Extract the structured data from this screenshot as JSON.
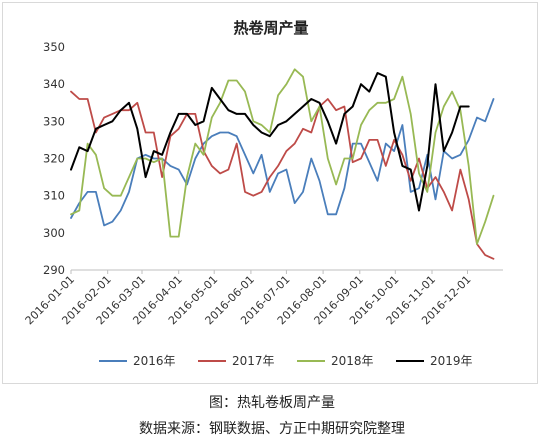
{
  "chart_data": {
    "type": "line",
    "title": "热卷周产量",
    "xlabel": "",
    "ylabel": "",
    "ylim": [
      290,
      350
    ],
    "yticks": [
      290,
      300,
      310,
      320,
      330,
      340,
      350
    ],
    "x_domain": [
      "2016-01-01",
      "2016-12-31"
    ],
    "xticks": [
      "2016-01-01",
      "2016-02-01",
      "2016-03-01",
      "2016-04-01",
      "2016-05-01",
      "2016-06-01",
      "2016-07-01",
      "2016-08-01",
      "2016-09-01",
      "2016-10-01",
      "2016-11-01",
      "2016-12-01"
    ],
    "grid": false,
    "legend_position": "bottom",
    "series": [
      {
        "name": "2016年",
        "color": "#4a7ebb",
        "points": [
          [
            "2016-01-01",
            304
          ],
          [
            "2016-01-08",
            308
          ],
          [
            "2016-01-15",
            311
          ],
          [
            "2016-01-22",
            311
          ],
          [
            "2016-01-29",
            302
          ],
          [
            "2016-02-05",
            303
          ],
          [
            "2016-02-12",
            306
          ],
          [
            "2016-02-19",
            311
          ],
          [
            "2016-02-26",
            320
          ],
          [
            "2016-03-04",
            321
          ],
          [
            "2016-03-11",
            320
          ],
          [
            "2016-03-18",
            320
          ],
          [
            "2016-03-25",
            318
          ],
          [
            "2016-04-01",
            317
          ],
          [
            "2016-04-08",
            313
          ],
          [
            "2016-04-15",
            320
          ],
          [
            "2016-04-22",
            324
          ],
          [
            "2016-04-29",
            326
          ],
          [
            "2016-05-06",
            327
          ],
          [
            "2016-05-13",
            327
          ],
          [
            "2016-05-20",
            326
          ],
          [
            "2016-05-27",
            321
          ],
          [
            "2016-06-03",
            316
          ],
          [
            "2016-06-10",
            321
          ],
          [
            "2016-06-17",
            311
          ],
          [
            "2016-06-24",
            316
          ],
          [
            "2016-07-01",
            317
          ],
          [
            "2016-07-08",
            308
          ],
          [
            "2016-07-15",
            311
          ],
          [
            "2016-07-22",
            320
          ],
          [
            "2016-07-29",
            314
          ],
          [
            "2016-08-05",
            305
          ],
          [
            "2016-08-12",
            305
          ],
          [
            "2016-08-19",
            312
          ],
          [
            "2016-08-26",
            324
          ],
          [
            "2016-09-02",
            324
          ],
          [
            "2016-09-09",
            319
          ],
          [
            "2016-09-16",
            314
          ],
          [
            "2016-09-23",
            324
          ],
          [
            "2016-09-30",
            322
          ],
          [
            "2016-10-07",
            329
          ],
          [
            "2016-10-14",
            311
          ],
          [
            "2016-10-21",
            312
          ],
          [
            "2016-10-28",
            321
          ],
          [
            "2016-11-04",
            309
          ],
          [
            "2016-11-11",
            322
          ],
          [
            "2016-11-18",
            320
          ],
          [
            "2016-11-25",
            321
          ],
          [
            "2016-12-02",
            325
          ],
          [
            "2016-12-09",
            331
          ],
          [
            "2016-12-16",
            330
          ],
          [
            "2016-12-23",
            336
          ]
        ]
      },
      {
        "name": "2017年",
        "color": "#be4b48",
        "points": [
          [
            "2016-01-01",
            338
          ],
          [
            "2016-01-08",
            336
          ],
          [
            "2016-01-15",
            336
          ],
          [
            "2016-01-22",
            327
          ],
          [
            "2016-01-29",
            331
          ],
          [
            "2016-02-05",
            332
          ],
          [
            "2016-02-12",
            333
          ],
          [
            "2016-02-19",
            333
          ],
          [
            "2016-02-26",
            335
          ],
          [
            "2016-03-04",
            327
          ],
          [
            "2016-03-11",
            327
          ],
          [
            "2016-03-18",
            315
          ],
          [
            "2016-03-25",
            326
          ],
          [
            "2016-04-01",
            328
          ],
          [
            "2016-04-08",
            332
          ],
          [
            "2016-04-15",
            332
          ],
          [
            "2016-04-22",
            322
          ],
          [
            "2016-04-29",
            318
          ],
          [
            "2016-05-06",
            316
          ],
          [
            "2016-05-13",
            317
          ],
          [
            "2016-05-20",
            324
          ],
          [
            "2016-05-27",
            311
          ],
          [
            "2016-06-03",
            310
          ],
          [
            "2016-06-10",
            311
          ],
          [
            "2016-06-17",
            315
          ],
          [
            "2016-06-24",
            318
          ],
          [
            "2016-07-01",
            322
          ],
          [
            "2016-07-08",
            324
          ],
          [
            "2016-07-15",
            328
          ],
          [
            "2016-07-22",
            327
          ],
          [
            "2016-07-29",
            334
          ],
          [
            "2016-08-05",
            336
          ],
          [
            "2016-08-12",
            333
          ],
          [
            "2016-08-19",
            334
          ],
          [
            "2016-08-26",
            319
          ],
          [
            "2016-09-02",
            320
          ],
          [
            "2016-09-09",
            325
          ],
          [
            "2016-09-16",
            325
          ],
          [
            "2016-09-23",
            318
          ],
          [
            "2016-09-30",
            325
          ],
          [
            "2016-10-07",
            321
          ],
          [
            "2016-10-14",
            314
          ],
          [
            "2016-10-21",
            320
          ],
          [
            "2016-10-28",
            312
          ],
          [
            "2016-11-04",
            315
          ],
          [
            "2016-11-11",
            311
          ],
          [
            "2016-11-18",
            306
          ],
          [
            "2016-11-25",
            317
          ],
          [
            "2016-12-02",
            309
          ],
          [
            "2016-12-09",
            297
          ],
          [
            "2016-12-16",
            294
          ],
          [
            "2016-12-23",
            293
          ]
        ]
      },
      {
        "name": "2018年",
        "color": "#98b954",
        "points": [
          [
            "2016-01-01",
            305
          ],
          [
            "2016-01-08",
            306
          ],
          [
            "2016-01-15",
            324
          ],
          [
            "2016-01-22",
            321
          ],
          [
            "2016-01-29",
            312
          ],
          [
            "2016-02-05",
            310
          ],
          [
            "2016-02-12",
            310
          ],
          [
            "2016-02-19",
            315
          ],
          [
            "2016-02-26",
            320
          ],
          [
            "2016-03-04",
            320
          ],
          [
            "2016-03-11",
            319
          ],
          [
            "2016-03-18",
            320
          ],
          [
            "2016-03-25",
            299
          ],
          [
            "2016-04-01",
            299
          ],
          [
            "2016-04-08",
            315
          ],
          [
            "2016-04-15",
            324
          ],
          [
            "2016-04-22",
            321
          ],
          [
            "2016-04-29",
            331
          ],
          [
            "2016-05-06",
            335
          ],
          [
            "2016-05-13",
            341
          ],
          [
            "2016-05-20",
            341
          ],
          [
            "2016-05-27",
            338
          ],
          [
            "2016-06-03",
            330
          ],
          [
            "2016-06-10",
            329
          ],
          [
            "2016-06-17",
            327
          ],
          [
            "2016-06-24",
            337
          ],
          [
            "2016-07-01",
            340
          ],
          [
            "2016-07-08",
            344
          ],
          [
            "2016-07-15",
            342
          ],
          [
            "2016-07-22",
            330
          ],
          [
            "2016-07-29",
            334
          ],
          [
            "2016-08-05",
            320
          ],
          [
            "2016-08-12",
            313
          ],
          [
            "2016-08-19",
            320
          ],
          [
            "2016-08-26",
            320
          ],
          [
            "2016-09-02",
            329
          ],
          [
            "2016-09-09",
            333
          ],
          [
            "2016-09-16",
            335
          ],
          [
            "2016-09-23",
            335
          ],
          [
            "2016-09-30",
            336
          ],
          [
            "2016-10-07",
            342
          ],
          [
            "2016-10-14",
            332
          ],
          [
            "2016-10-21",
            316
          ],
          [
            "2016-10-28",
            311
          ],
          [
            "2016-11-04",
            327
          ],
          [
            "2016-11-11",
            334
          ],
          [
            "2016-11-18",
            338
          ],
          [
            "2016-11-25",
            333
          ],
          [
            "2016-12-02",
            318
          ],
          [
            "2016-12-09",
            297
          ],
          [
            "2016-12-16",
            303
          ],
          [
            "2016-12-23",
            310
          ]
        ]
      },
      {
        "name": "2019年",
        "color": "#000000",
        "points": [
          [
            "2016-01-01",
            317
          ],
          [
            "2016-01-08",
            323
          ],
          [
            "2016-01-15",
            322
          ],
          [
            "2016-01-22",
            328
          ],
          [
            "2016-01-29",
            329
          ],
          [
            "2016-02-05",
            330
          ],
          [
            "2016-02-12",
            333
          ],
          [
            "2016-02-19",
            335
          ],
          [
            "2016-02-26",
            328
          ],
          [
            "2016-03-04",
            315
          ],
          [
            "2016-03-11",
            322
          ],
          [
            "2016-03-18",
            321
          ],
          [
            "2016-03-25",
            327
          ],
          [
            "2016-04-01",
            332
          ],
          [
            "2016-04-08",
            332
          ],
          [
            "2016-04-15",
            329
          ],
          [
            "2016-04-22",
            330
          ],
          [
            "2016-04-29",
            339
          ],
          [
            "2016-05-06",
            336
          ],
          [
            "2016-05-13",
            333
          ],
          [
            "2016-05-20",
            332
          ],
          [
            "2016-05-27",
            332
          ],
          [
            "2016-06-03",
            329
          ],
          [
            "2016-06-10",
            327
          ],
          [
            "2016-06-17",
            326
          ],
          [
            "2016-06-24",
            329
          ],
          [
            "2016-07-01",
            330
          ],
          [
            "2016-07-08",
            332
          ],
          [
            "2016-07-15",
            334
          ],
          [
            "2016-07-22",
            336
          ],
          [
            "2016-07-29",
            335
          ],
          [
            "2016-08-05",
            330
          ],
          [
            "2016-08-12",
            324
          ],
          [
            "2016-08-19",
            332
          ],
          [
            "2016-08-26",
            334
          ],
          [
            "2016-09-02",
            340
          ],
          [
            "2016-09-09",
            338
          ],
          [
            "2016-09-16",
            343
          ],
          [
            "2016-09-23",
            342
          ],
          [
            "2016-09-30",
            327
          ],
          [
            "2016-10-07",
            318
          ],
          [
            "2016-10-14",
            317
          ],
          [
            "2016-10-21",
            306
          ],
          [
            "2016-10-28",
            318
          ],
          [
            "2016-11-04",
            340
          ],
          [
            "2016-11-11",
            322
          ],
          [
            "2016-11-18",
            327
          ],
          [
            "2016-11-25",
            334
          ],
          [
            "2016-12-02",
            334
          ]
        ]
      }
    ]
  },
  "captions": {
    "figure": "图：热轧卷板周产量",
    "source": "数据来源：钢联数据、方正中期研究院整理"
  }
}
